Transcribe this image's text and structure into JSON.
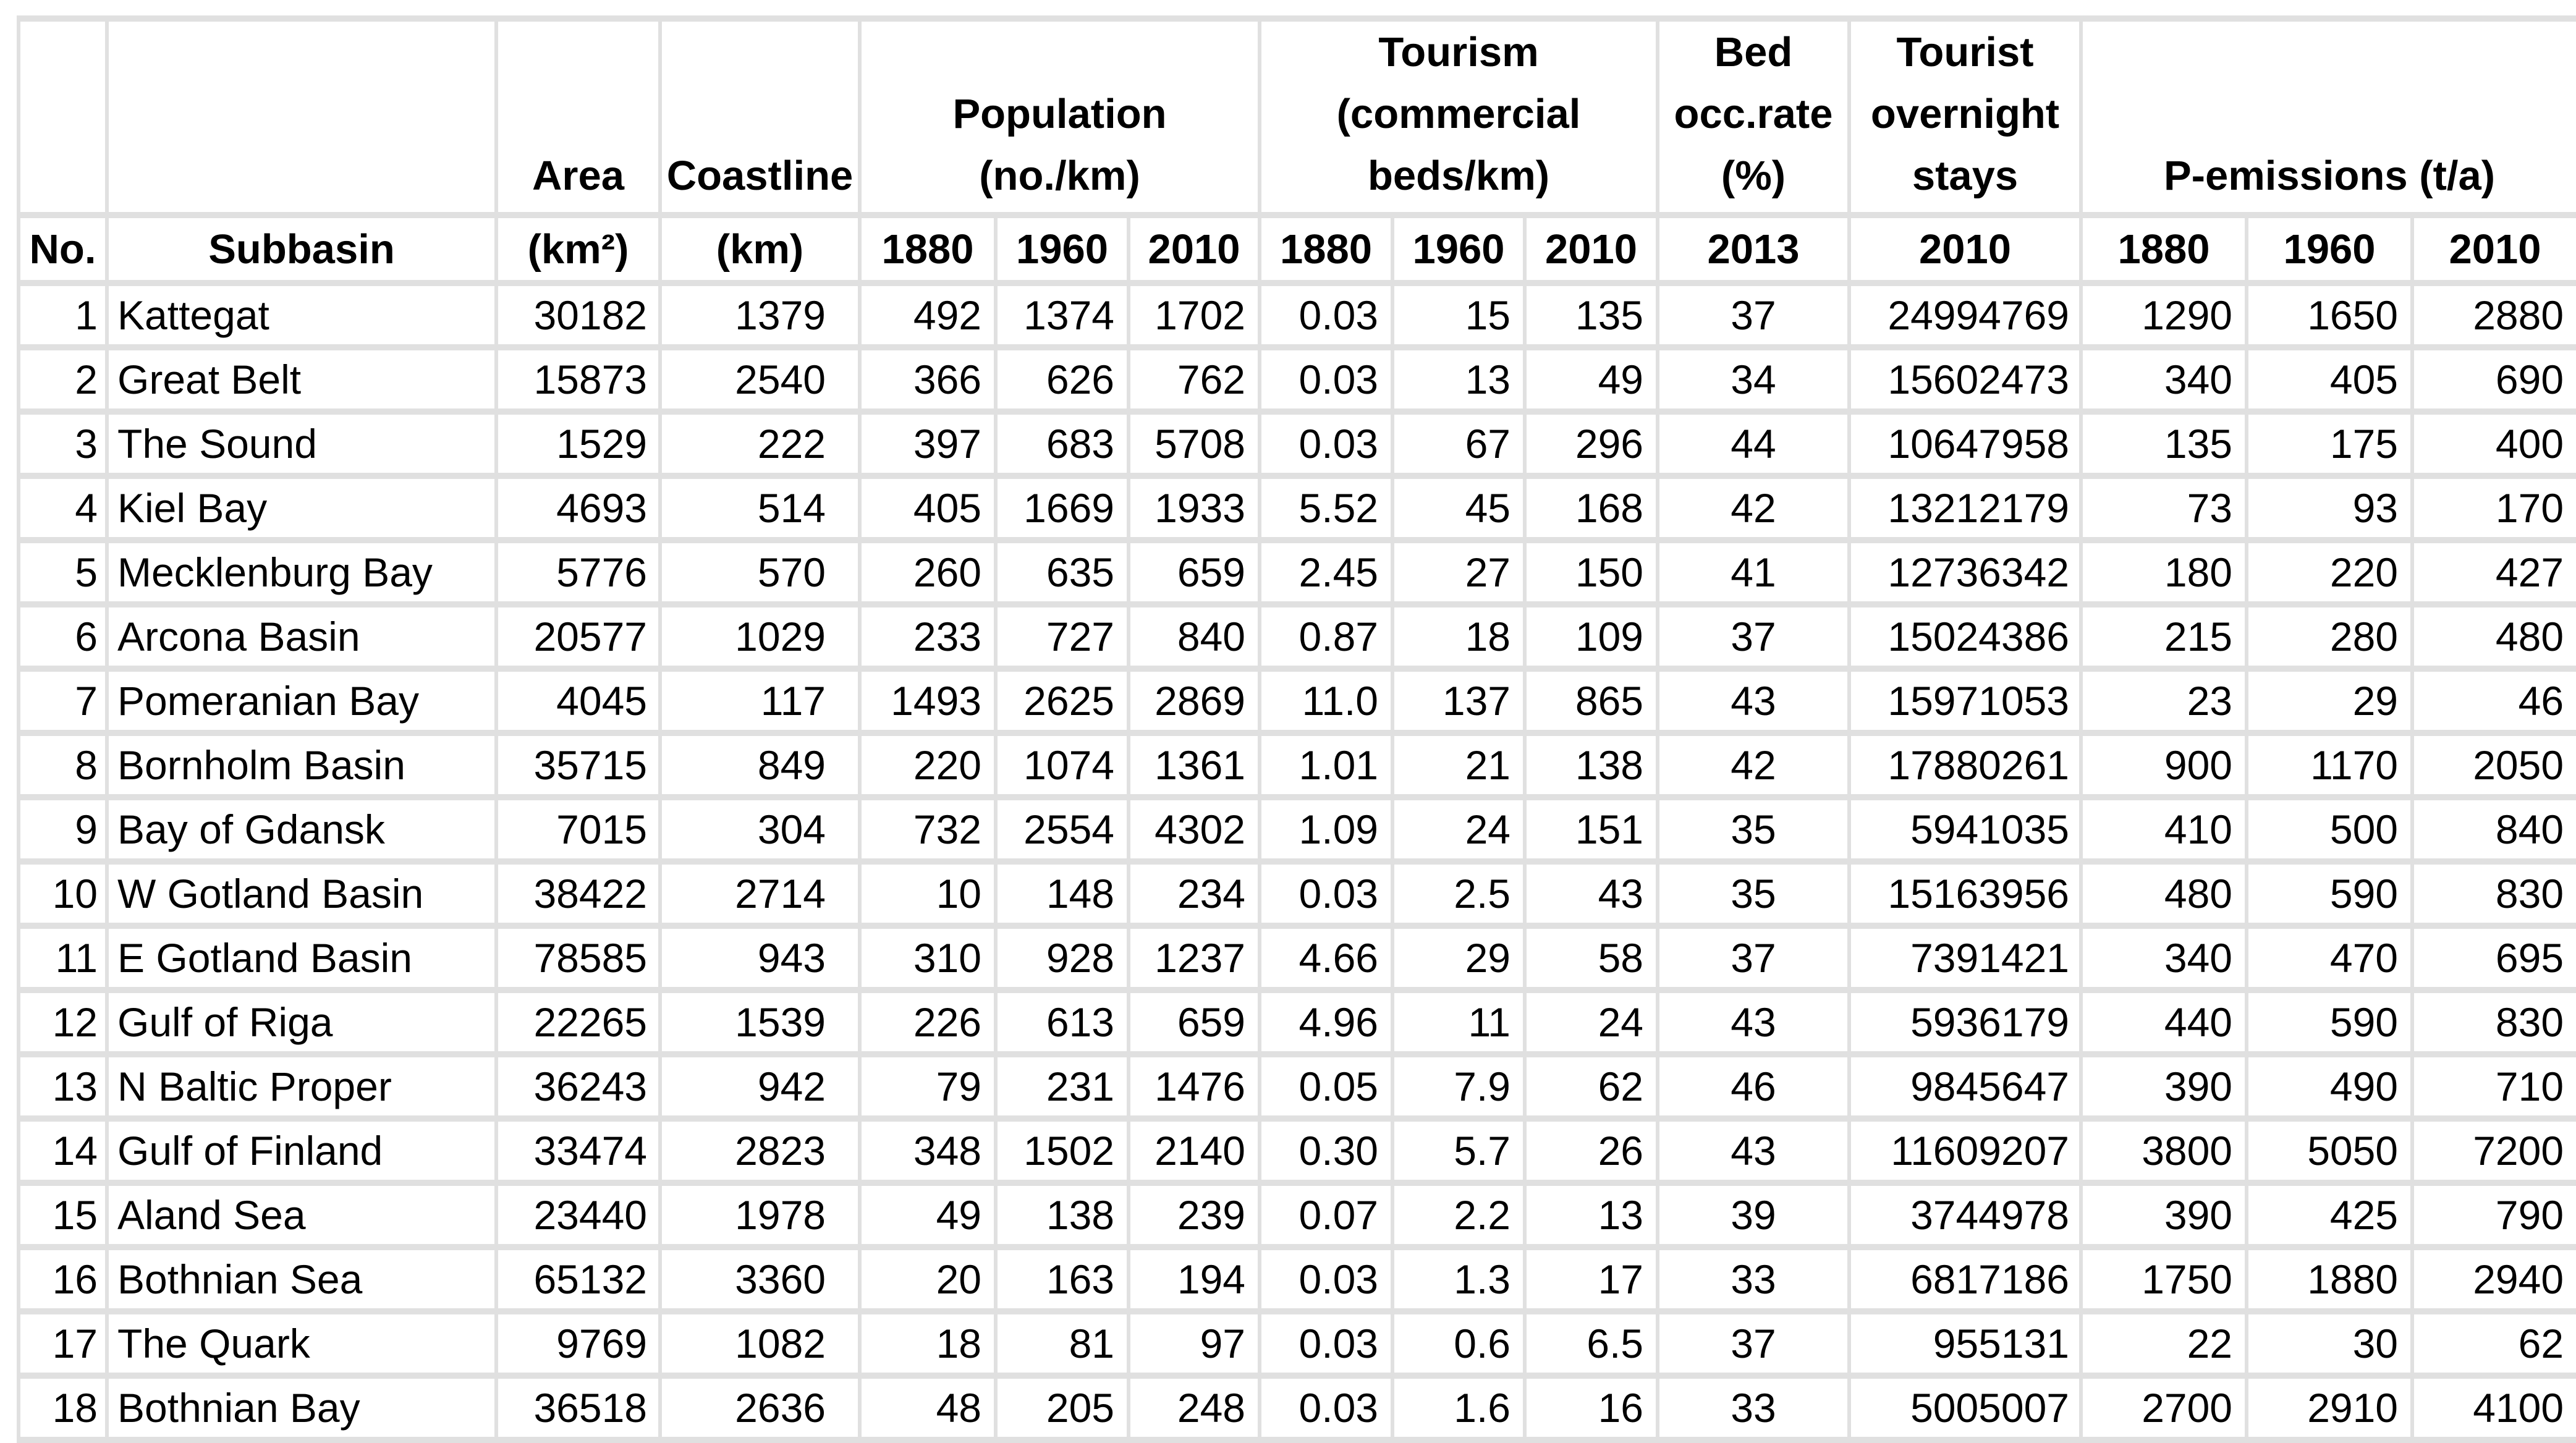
{
  "header": {
    "no": "No.",
    "subbasin": "Subbasin",
    "area": {
      "title": "Area",
      "unit": "(km²)"
    },
    "coastline": {
      "title": "Coastline",
      "unit": "(km)"
    },
    "population": {
      "lines": [
        "Population",
        "(no./km)"
      ],
      "years": [
        "1880",
        "1960",
        "2010"
      ]
    },
    "tourism": {
      "lines": [
        "Tourism",
        "(commercial",
        "beds/km)"
      ],
      "years": [
        "1880",
        "1960",
        "2010"
      ]
    },
    "bed_occ": {
      "lines": [
        "Bed",
        "occ.rate",
        "(%)"
      ],
      "year": "2013"
    },
    "overnight": {
      "lines": [
        "Tourist",
        "overnight",
        "stays"
      ],
      "year": "2010"
    },
    "p_emissions": {
      "title": "P-emissions (t/a)",
      "years": [
        "1880",
        "1960",
        "2010"
      ]
    }
  },
  "rows": [
    [
      "1",
      "Kattegat",
      "30182",
      "1379",
      "492",
      "1374",
      "1702",
      "0.03",
      "15",
      "135",
      "37",
      "24994769",
      "1290",
      "1650",
      "2880"
    ],
    [
      "2",
      "Great Belt",
      "15873",
      "2540",
      "366",
      "626",
      "762",
      "0.03",
      "13",
      "49",
      "34",
      "15602473",
      "340",
      "405",
      "690"
    ],
    [
      "3",
      "The Sound",
      "1529",
      "222",
      "397",
      "683",
      "5708",
      "0.03",
      "67",
      "296",
      "44",
      "10647958",
      "135",
      "175",
      "400"
    ],
    [
      "4",
      "Kiel Bay",
      "4693",
      "514",
      "405",
      "1669",
      "1933",
      "5.52",
      "45",
      "168",
      "42",
      "13212179",
      "73",
      "93",
      "170"
    ],
    [
      "5",
      "Mecklenburg Bay",
      "5776",
      "570",
      "260",
      "635",
      "659",
      "2.45",
      "27",
      "150",
      "41",
      "12736342",
      "180",
      "220",
      "427"
    ],
    [
      "6",
      "Arcona Basin",
      "20577",
      "1029",
      "233",
      "727",
      "840",
      "0.87",
      "18",
      "109",
      "37",
      "15024386",
      "215",
      "280",
      "480"
    ],
    [
      "7",
      "Pomeranian Bay",
      "4045",
      "117",
      "1493",
      "2625",
      "2869",
      "11.0",
      "137",
      "865",
      "43",
      "15971053",
      "23",
      "29",
      "46"
    ],
    [
      "8",
      "Bornholm Basin",
      "35715",
      "849",
      "220",
      "1074",
      "1361",
      "1.01",
      "21",
      "138",
      "42",
      "17880261",
      "900",
      "1170",
      "2050"
    ],
    [
      "9",
      "Bay of Gdansk",
      "7015",
      "304",
      "732",
      "2554",
      "4302",
      "1.09",
      "24",
      "151",
      "35",
      "5941035",
      "410",
      "500",
      "840"
    ],
    [
      "10",
      "W Gotland Basin",
      "38422",
      "2714",
      "10",
      "148",
      "234",
      "0.03",
      "2.5",
      "43",
      "35",
      "15163956",
      "480",
      "590",
      "830"
    ],
    [
      "11",
      "E Gotland Basin",
      "78585",
      "943",
      "310",
      "928",
      "1237",
      "4.66",
      "29",
      "58",
      "37",
      "7391421",
      "340",
      "470",
      "695"
    ],
    [
      "12",
      "Gulf of Riga",
      "22265",
      "1539",
      "226",
      "613",
      "659",
      "4.96",
      "11",
      "24",
      "43",
      "5936179",
      "440",
      "590",
      "830"
    ],
    [
      "13",
      "N Baltic Proper",
      "36243",
      "942",
      "79",
      "231",
      "1476",
      "0.05",
      "7.9",
      "62",
      "46",
      "9845647",
      "390",
      "490",
      "710"
    ],
    [
      "14",
      "Gulf of Finland",
      "33474",
      "2823",
      "348",
      "1502",
      "2140",
      "0.30",
      "5.7",
      "26",
      "43",
      "11609207",
      "3800",
      "5050",
      "7200"
    ],
    [
      "15",
      "Aland Sea",
      "23440",
      "1978",
      "49",
      "138",
      "239",
      "0.07",
      "2.2",
      "13",
      "39",
      "3744978",
      "390",
      "425",
      "790"
    ],
    [
      "16",
      "Bothnian Sea",
      "65132",
      "3360",
      "20",
      "163",
      "194",
      "0.03",
      "1.3",
      "17",
      "33",
      "6817186",
      "1750",
      "1880",
      "2940"
    ],
    [
      "17",
      "The Quark",
      "9769",
      "1082",
      "18",
      "81",
      "97",
      "0.03",
      "0.6",
      "6.5",
      "37",
      "955131",
      "22",
      "30",
      "62"
    ],
    [
      "18",
      "Bothnian Bay",
      "36518",
      "2636",
      "48",
      "205",
      "248",
      "0.03",
      "1.6",
      "16",
      "33",
      "5005007",
      "2700",
      "2910",
      "4100"
    ]
  ]
}
